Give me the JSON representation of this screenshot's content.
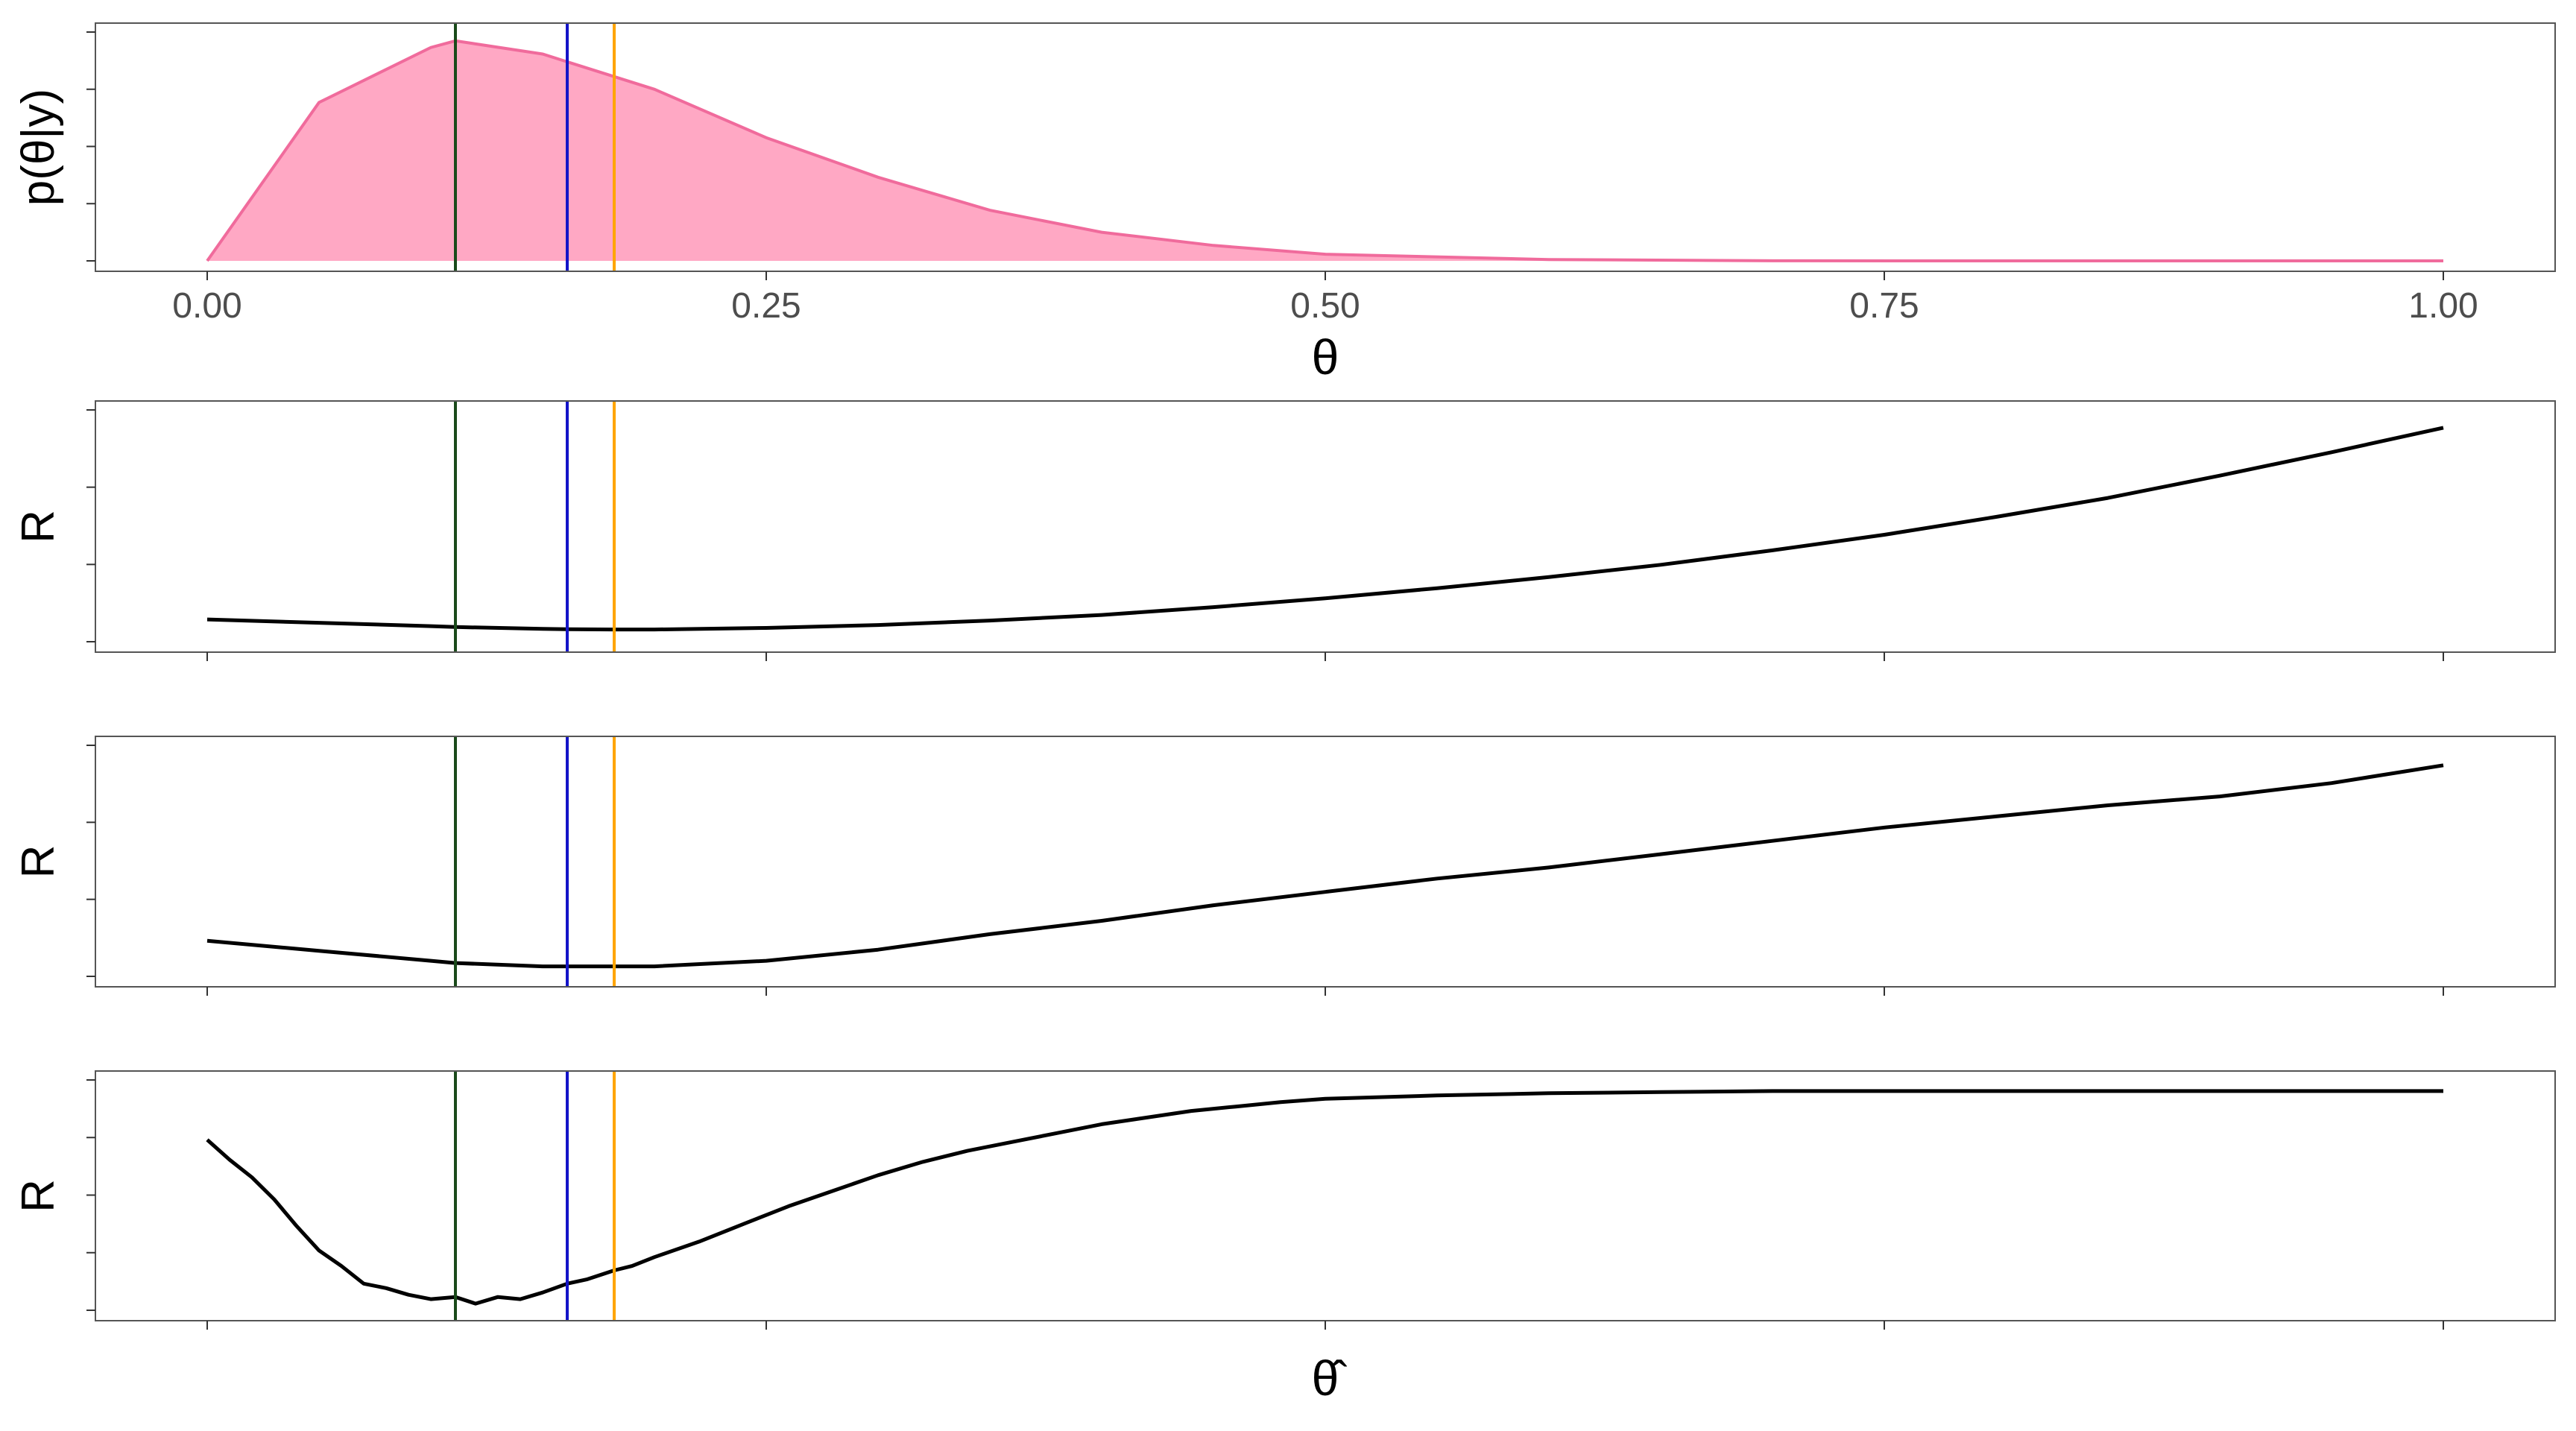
{
  "chart_data": [
    {
      "type": "area",
      "panel": "posterior",
      "ylabel": "p(θ|y)",
      "xlabel": "θ",
      "xlim": [
        -0.05,
        1.05
      ],
      "ylim": [
        0,
        1.04
      ],
      "x_ticks": [
        0,
        0.25,
        0.5,
        0.75,
        1
      ],
      "x_tick_labels": [
        "0.00",
        "0.25",
        "0.50",
        "0.75",
        "1.00"
      ],
      "y_tick_count": 5,
      "fill_color": "#FFA8C4",
      "line_color": "#F06B9C",
      "distribution": {
        "family": "beta",
        "alpha": 2,
        "beta": 9
      },
      "x": [
        0,
        0.05,
        0.1,
        0.111,
        0.15,
        0.2,
        0.25,
        0.3,
        0.35,
        0.4,
        0.45,
        0.5,
        0.6,
        0.7,
        0.8,
        0.9,
        1
      ],
      "values": [
        0,
        0.72,
        0.97,
        1.0,
        0.94,
        0.78,
        0.56,
        0.38,
        0.23,
        0.13,
        0.07,
        0.03,
        0.006,
        0.0005,
        0,
        0,
        0
      ]
    },
    {
      "type": "line",
      "panel": "risk-1",
      "ylabel": "R",
      "xlim": [
        -0.05,
        1.05
      ],
      "ylim": [
        0,
        1.04
      ],
      "y_tick_count": 4,
      "line_color": "#000000",
      "x": [
        0,
        0.05,
        0.1,
        0.111,
        0.15,
        0.161,
        0.182,
        0.2,
        0.25,
        0.3,
        0.35,
        0.4,
        0.45,
        0.5,
        0.55,
        0.6,
        0.65,
        0.7,
        0.75,
        0.8,
        0.85,
        0.9,
        0.95,
        1
      ],
      "values": [
        0.1,
        0.085,
        0.07,
        0.066,
        0.058,
        0.056,
        0.055,
        0.055,
        0.062,
        0.075,
        0.095,
        0.12,
        0.155,
        0.195,
        0.24,
        0.29,
        0.345,
        0.41,
        0.48,
        0.56,
        0.645,
        0.745,
        0.85,
        0.96
      ]
    },
    {
      "type": "line",
      "panel": "risk-2",
      "ylabel": "R",
      "xlim": [
        -0.05,
        1.05
      ],
      "ylim": [
        0,
        1.04
      ],
      "y_tick_count": 4,
      "line_color": "#000000",
      "x": [
        0,
        0.05,
        0.1,
        0.111,
        0.15,
        0.161,
        0.182,
        0.2,
        0.25,
        0.3,
        0.35,
        0.4,
        0.45,
        0.5,
        0.55,
        0.6,
        0.65,
        0.7,
        0.75,
        0.8,
        0.85,
        0.9,
        0.95,
        1
      ],
      "values": [
        0.16,
        0.115,
        0.07,
        0.06,
        0.045,
        0.045,
        0.045,
        0.045,
        0.07,
        0.12,
        0.19,
        0.25,
        0.32,
        0.38,
        0.44,
        0.49,
        0.55,
        0.61,
        0.67,
        0.72,
        0.77,
        0.81,
        0.87,
        0.95
      ]
    },
    {
      "type": "line",
      "panel": "risk-3",
      "ylabel": "R",
      "xlabel": "θ̂",
      "xlim": [
        -0.05,
        1.05
      ],
      "ylim": [
        0,
        1.04
      ],
      "y_tick_count": 5,
      "line_color": "#000000",
      "x": [
        0,
        0.01,
        0.02,
        0.03,
        0.04,
        0.05,
        0.06,
        0.07,
        0.08,
        0.09,
        0.1,
        0.111,
        0.12,
        0.13,
        0.14,
        0.15,
        0.161,
        0.17,
        0.182,
        0.19,
        0.2,
        0.22,
        0.24,
        0.26,
        0.28,
        0.3,
        0.32,
        0.34,
        0.36,
        0.38,
        0.4,
        0.42,
        0.44,
        0.46,
        0.48,
        0.5,
        0.55,
        0.6,
        0.65,
        0.7,
        0.8,
        0.9,
        1
      ],
      "values": [
        0.77,
        0.68,
        0.6,
        0.5,
        0.38,
        0.27,
        0.2,
        0.12,
        0.1,
        0.07,
        0.05,
        0.06,
        0.03,
        0.06,
        0.05,
        0.08,
        0.12,
        0.14,
        0.18,
        0.2,
        0.24,
        0.31,
        0.39,
        0.47,
        0.54,
        0.61,
        0.67,
        0.72,
        0.76,
        0.8,
        0.84,
        0.87,
        0.9,
        0.92,
        0.94,
        0.955,
        0.97,
        0.98,
        0.985,
        0.99,
        0.99,
        0.99,
        0.99
      ]
    }
  ],
  "reference_lines": [
    {
      "x": 0.111,
      "color": "#1A4A1A"
    },
    {
      "x": 0.161,
      "color": "#1414C8"
    },
    {
      "x": 0.182,
      "color": "#FFA500"
    }
  ]
}
